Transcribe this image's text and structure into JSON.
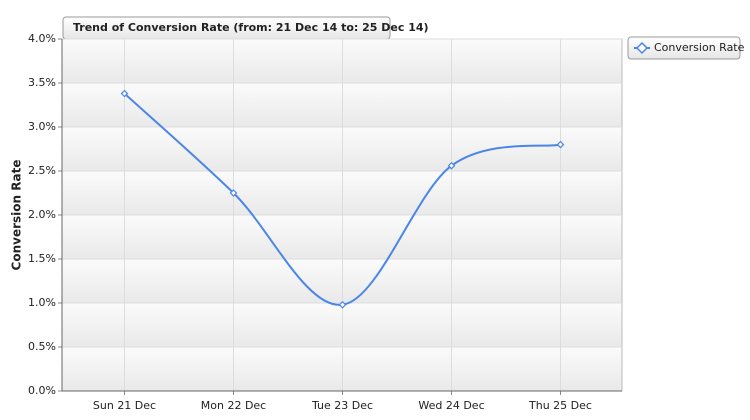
{
  "chart_data": {
    "type": "line",
    "title": "Trend of Conversion Rate (from: 21 Dec 14 to: 25 Dec 14)",
    "y_label": "Conversion Rate",
    "categories": [
      "Sun 21 Dec",
      "Mon 22 Dec",
      "Tue 23 Dec",
      "Wed 24 Dec",
      "Thu 25 Dec"
    ],
    "series": [
      {
        "name": "Conversion Rate",
        "color": "#4a86e8",
        "values": [
          3.38,
          2.25,
          0.98,
          2.56,
          2.8
        ]
      }
    ],
    "ylim": [
      0,
      4
    ],
    "yticks": [
      {
        "value": 0,
        "label": "0.0%"
      },
      {
        "value": 0.5,
        "label": "0.5%"
      },
      {
        "value": 1,
        "label": "1.0%"
      },
      {
        "value": 1.5,
        "label": "1.5%"
      },
      {
        "value": 2,
        "label": "2.0%"
      },
      {
        "value": 2.5,
        "label": "2.5%"
      },
      {
        "value": 3,
        "label": "3.0%"
      },
      {
        "value": 3.5,
        "label": "3.5%"
      },
      {
        "value": 4,
        "label": "4.0%"
      }
    ],
    "grid": true,
    "legend": "top-right"
  }
}
